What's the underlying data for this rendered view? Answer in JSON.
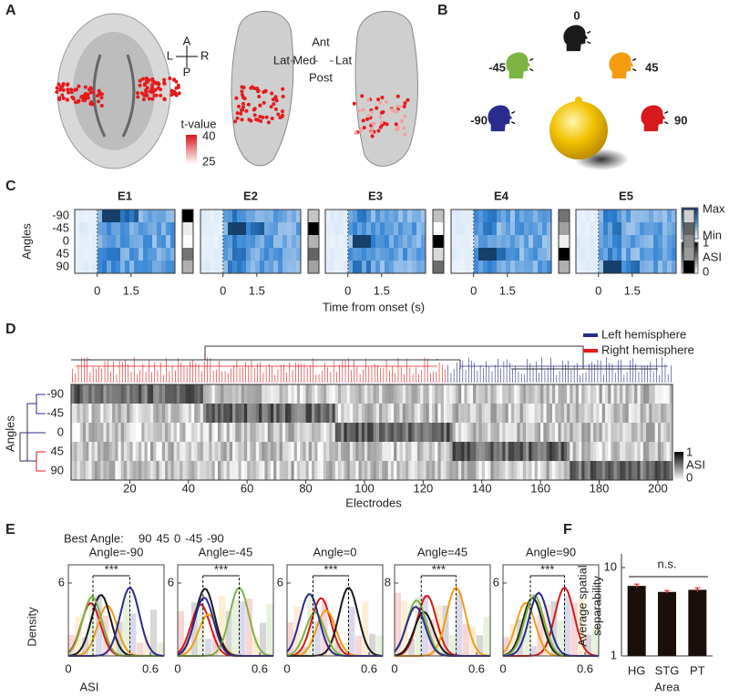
{
  "angles": [
    {
      "label": "-90",
      "color": "#2b2a8f"
    },
    {
      "label": "-45",
      "color": "#7cb342"
    },
    {
      "label": "0",
      "color": "#1a1a1a"
    },
    {
      "label": "45",
      "color": "#f39c12"
    },
    {
      "label": "90",
      "color": "#d7191c"
    }
  ],
  "panel_a": {
    "label": "A",
    "compass": {
      "anterior": "A",
      "posterior": "P",
      "left": "L",
      "right": "R"
    },
    "views": {
      "anterior": "Ant",
      "lateral": "Lat",
      "medial": "Med",
      "posterior": "Post"
    },
    "colorbar": {
      "title": "t-value",
      "max": 40,
      "min": 25
    }
  },
  "panel_b": {
    "label": "B"
  },
  "panel_c": {
    "label": "C",
    "y_label": "Angles",
    "electrodes": [
      {
        "name": "E1",
        "color": "#2b2a8f"
      },
      {
        "name": "E2",
        "color": "#7cb342"
      },
      {
        "name": "E3",
        "color": "#1a1a1a"
      },
      {
        "name": "E4",
        "color": "#f39c12"
      },
      {
        "name": "E5",
        "color": "#d7191c"
      }
    ],
    "xlim": [
      -1,
      3.45
    ],
    "xticks": [
      0,
      1.5
    ],
    "x_label": "Time from onset (s)",
    "response_colorbar": {
      "max": "Max",
      "min": "Min"
    },
    "asi_colorbar": {
      "title": "ASI",
      "max": 1,
      "min": 0
    }
  },
  "panel_d": {
    "label": "D",
    "legend": [
      {
        "name": "Left hemisphere",
        "color": "#2b2a8f"
      },
      {
        "name": "Right hemisphere",
        "color": "#e41a1c"
      }
    ],
    "y_label": "Angles",
    "xlim": [
      0,
      205
    ],
    "xticks": [
      20,
      40,
      60,
      80,
      100,
      120,
      140,
      160,
      180,
      200
    ],
    "x_label": "Electrodes",
    "colorbar": {
      "title": "ASI",
      "max": 1,
      "min": 0
    }
  },
  "panel_e": {
    "label": "E",
    "legend_title": "Best Angle:",
    "legend": [
      {
        "name": "90",
        "color": "#d7191c"
      },
      {
        "name": "45",
        "color": "#f39c12"
      },
      {
        "name": "0",
        "color": "#1a1a1a"
      },
      {
        "name": "-45",
        "color": "#7cb342"
      },
      {
        "name": "-90",
        "color": "#2b2a8f"
      }
    ],
    "y_label": "Density",
    "x_label": "ASI",
    "xlim": [
      0,
      0.7
    ],
    "xticks": [
      0,
      0.6
    ],
    "subplots": [
      {
        "title": "Angle=-90",
        "color": "#2b2a8f",
        "ylim": [
          0,
          7.5
        ],
        "yticks": [
          6
        ],
        "significance": "***"
      },
      {
        "title": "Angle=-45",
        "color": "#7cb342",
        "ylim": [
          0,
          7.5
        ],
        "yticks": [
          6
        ],
        "significance": "***"
      },
      {
        "title": "Angle=0",
        "color": "#1a1a1a",
        "ylim": [
          0,
          7.5
        ],
        "yticks": [
          6
        ],
        "significance": "***"
      },
      {
        "title": "Angle=45",
        "color": "#f39c12",
        "ylim": [
          0,
          10
        ],
        "yticks": [
          8
        ],
        "significance": "***"
      },
      {
        "title": "Angle=90",
        "color": "#d7191c",
        "ylim": [
          0,
          7.5
        ],
        "yticks": [
          6
        ],
        "significance": "***"
      }
    ]
  },
  "chart_data": {
    "type": "bar",
    "label": "F",
    "categories": [
      "HG",
      "STG",
      "PT"
    ],
    "values": [
      6.2,
      5.3,
      5.6
    ],
    "errors": [
      0.3,
      0.2,
      0.3
    ],
    "color": "#1a0f0a",
    "error_color": "#e41a1c",
    "ylim": [
      1,
      10
    ],
    "yticks": [
      1,
      10
    ],
    "log_scale": true,
    "y_label": [
      "Average spatial",
      "separability"
    ],
    "x_label": "Area",
    "annotation": "n.s."
  }
}
